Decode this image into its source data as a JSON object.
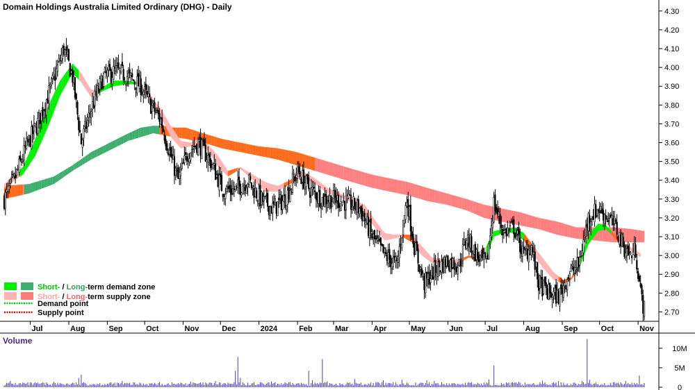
{
  "chart_data": {
    "type": "candlestick",
    "title": "Domain Holdings Australia Limited Ordinary (DHG) - Daily",
    "ylim": [
      2.65,
      4.34
    ],
    "y_ticks": [
      "4.30",
      "4.20",
      "4.10",
      "4.00",
      "3.90",
      "3.80",
      "3.70",
      "3.60",
      "3.50",
      "3.40",
      "3.30",
      "3.20",
      "3.10",
      "3.00",
      "2.90",
      "2.80",
      "2.70"
    ],
    "x_ticks": [
      {
        "label": "Jul",
        "day": 21
      },
      {
        "label": "Aug",
        "day": 52
      },
      {
        "label": "Sep",
        "day": 83
      },
      {
        "label": "Oct",
        "day": 113
      },
      {
        "label": "Nov",
        "day": 144
      },
      {
        "label": "Dec",
        "day": 174
      },
      {
        "label": "2024",
        "day": 205
      },
      {
        "label": "Feb",
        "day": 236
      },
      {
        "label": "Mar",
        "day": 265
      },
      {
        "label": "Apr",
        "day": 296
      },
      {
        "label": "May",
        "day": 326
      },
      {
        "label": "Jun",
        "day": 357
      },
      {
        "label": "Jul",
        "day": 387
      },
      {
        "label": "Aug",
        "day": 418
      },
      {
        "label": "Sep",
        "day": 449
      },
      {
        "label": "Oct",
        "day": 479
      },
      {
        "label": "Nov",
        "day": 510
      }
    ],
    "x_range": [
      0,
      520
    ],
    "price_path": [
      [
        0,
        3.3
      ],
      [
        8,
        3.4
      ],
      [
        18,
        3.58
      ],
      [
        28,
        3.72
      ],
      [
        38,
        3.9
      ],
      [
        48,
        4.1
      ],
      [
        55,
        3.95
      ],
      [
        62,
        3.6
      ],
      [
        70,
        3.78
      ],
      [
        80,
        3.95
      ],
      [
        90,
        3.98
      ],
      [
        100,
        3.95
      ],
      [
        110,
        3.9
      ],
      [
        118,
        3.8
      ],
      [
        126,
        3.72
      ],
      [
        133,
        3.55
      ],
      [
        140,
        3.4
      ],
      [
        148,
        3.55
      ],
      [
        156,
        3.6
      ],
      [
        166,
        3.5
      ],
      [
        176,
        3.35
      ],
      [
        186,
        3.35
      ],
      [
        196,
        3.4
      ],
      [
        206,
        3.3
      ],
      [
        216,
        3.25
      ],
      [
        226,
        3.3
      ],
      [
        236,
        3.45
      ],
      [
        246,
        3.35
      ],
      [
        256,
        3.3
      ],
      [
        266,
        3.3
      ],
      [
        276,
        3.28
      ],
      [
        286,
        3.25
      ],
      [
        296,
        3.1
      ],
      [
        306,
        3.0
      ],
      [
        316,
        2.95
      ],
      [
        324,
        3.3
      ],
      [
        330,
        3.05
      ],
      [
        338,
        2.85
      ],
      [
        346,
        2.92
      ],
      [
        356,
        2.97
      ],
      [
        366,
        2.95
      ],
      [
        372,
        3.1
      ],
      [
        380,
        3.0
      ],
      [
        388,
        2.95
      ],
      [
        394,
        3.28
      ],
      [
        402,
        3.12
      ],
      [
        410,
        3.15
      ],
      [
        418,
        3.0
      ],
      [
        424,
        3.05
      ],
      [
        430,
        2.85
      ],
      [
        438,
        2.8
      ],
      [
        446,
        2.78
      ],
      [
        454,
        2.9
      ],
      [
        462,
        2.95
      ],
      [
        470,
        3.2
      ],
      [
        478,
        3.25
      ],
      [
        486,
        3.2
      ],
      [
        492,
        3.15
      ],
      [
        498,
        3.05
      ],
      [
        504,
        3.0
      ],
      [
        508,
        3.03
      ],
      [
        512,
        2.8
      ],
      [
        515,
        2.71
      ]
    ],
    "short_term_zone": [
      [
        0,
        3.36,
        3.38
      ],
      [
        15,
        3.43,
        3.47
      ],
      [
        25,
        3.53,
        3.62
      ],
      [
        35,
        3.68,
        3.79
      ],
      [
        45,
        3.85,
        3.93
      ],
      [
        55,
        3.97,
        4.02
      ],
      [
        62,
        3.92,
        3.97
      ],
      [
        70,
        3.84,
        3.88
      ],
      [
        78,
        3.87,
        3.89
      ],
      [
        88,
        3.9,
        3.93
      ],
      [
        98,
        3.91,
        3.93
      ],
      [
        108,
        3.91,
        3.92
      ],
      [
        118,
        3.83,
        3.85
      ],
      [
        126,
        3.74,
        3.78
      ],
      [
        134,
        3.63,
        3.69
      ],
      [
        142,
        3.57,
        3.61
      ],
      [
        150,
        3.58,
        3.6
      ],
      [
        156,
        3.58,
        3.62
      ],
      [
        164,
        3.56,
        3.59
      ],
      [
        172,
        3.47,
        3.53
      ],
      [
        180,
        3.42,
        3.45
      ],
      [
        190,
        3.46,
        3.47
      ],
      [
        200,
        3.4,
        3.43
      ],
      [
        210,
        3.34,
        3.39
      ],
      [
        220,
        3.34,
        3.37
      ],
      [
        230,
        3.38,
        3.4
      ],
      [
        240,
        3.42,
        3.45
      ],
      [
        250,
        3.38,
        3.41
      ],
      [
        260,
        3.33,
        3.36
      ],
      [
        270,
        3.31,
        3.33
      ],
      [
        280,
        3.28,
        3.3
      ],
      [
        290,
        3.22,
        3.27
      ],
      [
        298,
        3.15,
        3.19
      ],
      [
        306,
        3.08,
        3.12
      ],
      [
        314,
        3.09,
        3.11
      ],
      [
        320,
        3.1,
        3.11
      ],
      [
        328,
        3.07,
        3.11
      ],
      [
        336,
        3.0,
        3.05
      ],
      [
        344,
        2.96,
        2.99
      ],
      [
        352,
        2.96,
        2.98
      ],
      [
        360,
        2.95,
        2.98
      ],
      [
        366,
        2.96,
        2.98
      ],
      [
        374,
        2.99,
        3.0
      ],
      [
        380,
        2.97,
        2.99
      ],
      [
        388,
        3.0,
        3.05
      ],
      [
        394,
        3.1,
        3.13
      ],
      [
        402,
        3.12,
        3.14
      ],
      [
        410,
        3.12,
        3.15
      ],
      [
        418,
        3.08,
        3.12
      ],
      [
        426,
        3.0,
        3.05
      ],
      [
        434,
        2.93,
        2.98
      ],
      [
        442,
        2.87,
        2.91
      ],
      [
        450,
        2.85,
        2.87
      ],
      [
        456,
        2.87,
        2.88
      ],
      [
        462,
        2.92,
        2.96
      ],
      [
        470,
        3.06,
        3.11
      ],
      [
        478,
        3.13,
        3.17
      ],
      [
        484,
        3.14,
        3.16
      ],
      [
        490,
        3.1,
        3.12
      ],
      [
        496,
        3.06,
        3.08
      ],
      [
        502,
        3.03,
        3.05
      ],
      [
        508,
        3.01,
        3.03
      ],
      [
        512,
        2.99,
        3.01
      ]
    ],
    "short_term_state": [
      [
        0,
        "supply"
      ],
      [
        12,
        "demand"
      ],
      [
        60,
        "supply"
      ],
      [
        75,
        "demand"
      ],
      [
        110,
        "supply"
      ],
      [
        180,
        "supply-strong"
      ],
      [
        188,
        "supply"
      ],
      [
        225,
        "supply-strong"
      ],
      [
        235,
        "supply"
      ],
      [
        320,
        "supply-strong"
      ],
      [
        330,
        "supply"
      ],
      [
        366,
        "supply-strong"
      ],
      [
        380,
        "supply"
      ],
      [
        388,
        "demand"
      ],
      [
        418,
        "supply-strong"
      ],
      [
        424,
        "supply"
      ],
      [
        446,
        "supply-strong"
      ],
      [
        460,
        "demand"
      ],
      [
        488,
        "supply-strong"
      ],
      [
        500,
        "supply"
      ]
    ],
    "long_term_zone": [
      [
        0,
        3.3,
        3.37
      ],
      [
        20,
        3.33,
        3.38
      ],
      [
        40,
        3.38,
        3.42
      ],
      [
        55,
        3.45,
        3.48
      ],
      [
        70,
        3.51,
        3.55
      ],
      [
        85,
        3.56,
        3.6
      ],
      [
        100,
        3.61,
        3.65
      ],
      [
        110,
        3.63,
        3.68
      ],
      [
        120,
        3.65,
        3.69
      ],
      [
        128,
        3.64,
        3.69
      ],
      [
        136,
        3.63,
        3.68
      ],
      [
        146,
        3.62,
        3.68
      ],
      [
        160,
        3.6,
        3.65
      ],
      [
        175,
        3.57,
        3.62
      ],
      [
        190,
        3.55,
        3.6
      ],
      [
        205,
        3.53,
        3.58
      ],
      [
        220,
        3.51,
        3.57
      ],
      [
        235,
        3.48,
        3.55
      ],
      [
        250,
        3.45,
        3.52
      ],
      [
        265,
        3.42,
        3.49
      ],
      [
        280,
        3.39,
        3.46
      ],
      [
        296,
        3.36,
        3.43
      ],
      [
        310,
        3.34,
        3.41
      ],
      [
        325,
        3.32,
        3.39
      ],
      [
        340,
        3.29,
        3.36
      ],
      [
        356,
        3.27,
        3.33
      ],
      [
        372,
        3.24,
        3.3
      ],
      [
        386,
        3.2,
        3.27
      ],
      [
        400,
        3.18,
        3.25
      ],
      [
        415,
        3.16,
        3.23
      ],
      [
        430,
        3.14,
        3.2
      ],
      [
        445,
        3.11,
        3.18
      ],
      [
        460,
        3.09,
        3.15
      ],
      [
        475,
        3.08,
        3.15
      ],
      [
        490,
        3.07,
        3.15
      ],
      [
        505,
        3.07,
        3.14
      ],
      [
        515,
        3.07,
        3.13
      ]
    ],
    "long_term_state": [
      [
        0,
        "supply-strong"
      ],
      [
        15,
        "supply"
      ],
      [
        16,
        "demand"
      ],
      [
        125,
        "supply-strong"
      ],
      [
        250,
        "supply"
      ]
    ],
    "volume": {
      "ylim": [
        0,
        13
      ],
      "y_ticks": [
        "10M",
        "5M",
        "0"
      ],
      "spikes": [
        [
          5,
          1.6
        ],
        [
          15,
          1.2
        ],
        [
          40,
          1.4
        ],
        [
          60,
          2.4
        ],
        [
          62,
          3.2
        ],
        [
          95,
          1.6
        ],
        [
          150,
          1.4
        ],
        [
          170,
          1.6
        ],
        [
          186,
          4.2
        ],
        [
          188,
          7.8
        ],
        [
          190,
          2.4
        ],
        [
          215,
          1.5
        ],
        [
          245,
          4.2
        ],
        [
          248,
          1.8
        ],
        [
          256,
          7.2
        ],
        [
          260,
          1.5
        ],
        [
          282,
          2.1
        ],
        [
          305,
          1.8
        ],
        [
          320,
          1.9
        ],
        [
          340,
          1.8
        ],
        [
          346,
          1.6
        ],
        [
          390,
          2.0
        ],
        [
          394,
          5.6
        ],
        [
          414,
          1.4
        ],
        [
          433,
          1.7
        ],
        [
          446,
          1.6
        ],
        [
          465,
          1.6
        ],
        [
          469,
          12.4
        ],
        [
          471,
          1.9
        ],
        [
          500,
          1.6
        ],
        [
          511,
          3.0
        ]
      ]
    },
    "legend": [
      {
        "label_a": "Short-",
        "label_b": " / ",
        "label_c": "Long-",
        "label_d": "term demand zone",
        "color_short": "#00f000",
        "color_long": "#3dae6e",
        "text_color_a": "#00c400",
        "text_color_b": "#000000",
        "text_color_c": "#2e9e58",
        "text_color_d": "#000000"
      },
      {
        "label_a": "Short-",
        "label_b": " / ",
        "label_c": "Long-",
        "label_d": "term supply zone",
        "color_short": "#ffb3b3",
        "color_long": "#ff7a7a",
        "text_color_a": "#ffa0a0",
        "text_color_b": "#000000",
        "text_color_c": "#ff6060",
        "text_color_d": "#000000"
      },
      {
        "label": "Demand point",
        "color": "#00c800"
      },
      {
        "label": "Supply point",
        "color": "#dd0000"
      }
    ],
    "volume_title": "Volume",
    "colors": {
      "demand_short": "#00f000",
      "demand_long": "#3dae6e",
      "supply_short": "#ffb3b3",
      "supply_long": "#ff7f7f",
      "supply_strong": "#ff6a1a",
      "candle": "#000000",
      "volume": "#4b3cb4"
    }
  }
}
